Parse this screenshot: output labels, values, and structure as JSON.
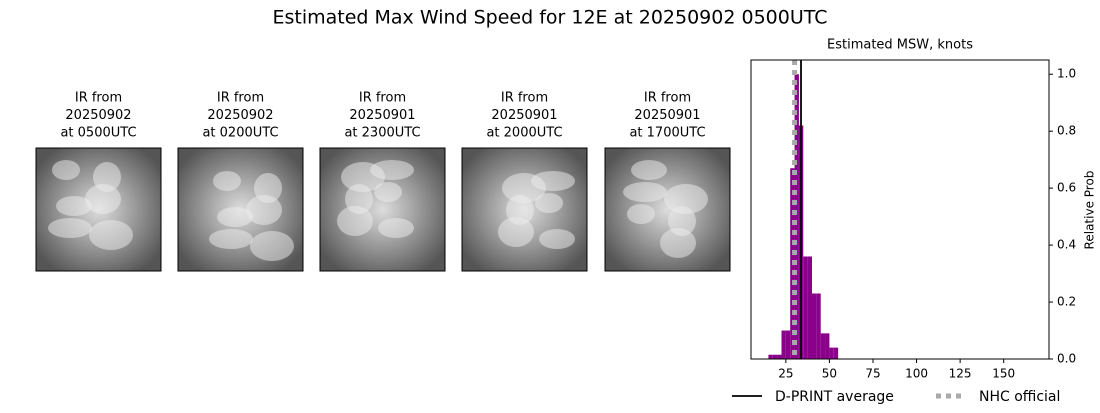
{
  "title": "Estimated Max Wind Speed for 12E at 20250902 0500UTC",
  "panels": [
    {
      "lines": [
        "IR from",
        "20250902",
        "at 0500UTC"
      ]
    },
    {
      "lines": [
        "IR from",
        "20250902",
        "at 0200UTC"
      ]
    },
    {
      "lines": [
        "IR from",
        "20250901",
        "at 2300UTC"
      ]
    },
    {
      "lines": [
        "IR from",
        "20250901",
        "at 2000UTC"
      ]
    },
    {
      "lines": [
        "IR from",
        "20250901",
        "at 1700UTC"
      ]
    }
  ],
  "chart_data": {
    "type": "histogram",
    "title": "Estimated MSW, knots",
    "y_label": "Relative Prob",
    "bins": [
      15,
      17.5,
      20,
      22.5,
      25,
      27.5,
      30,
      32.5,
      35,
      37.5,
      40,
      42.5,
      45,
      47.5,
      50,
      52.5,
      55
    ],
    "values": [
      0.015,
      0.015,
      0.015,
      0.1,
      0.1,
      0.67,
      1.0,
      0.82,
      0.36,
      0.36,
      0.23,
      0.23,
      0.09,
      0.09,
      0.04,
      0.04
    ],
    "color": "#8b008b",
    "xlim": [
      5,
      176
    ],
    "xticks": [
      25,
      50,
      75,
      100,
      125,
      150
    ],
    "ylim": [
      0,
      1.05
    ],
    "yticks": [
      {
        "value": 0,
        "label": "0.0"
      },
      {
        "value": 0.2,
        "label": "0.2"
      },
      {
        "value": 0.4,
        "label": "0.4"
      },
      {
        "value": 0.6,
        "label": "0.6"
      },
      {
        "value": 0.8,
        "label": "0.8"
      },
      {
        "value": 1,
        "label": "1.0"
      }
    ],
    "vlines": [
      {
        "name": "D-PRINT average",
        "value": 33.7,
        "color": "#000000",
        "style": "solid"
      },
      {
        "name": "NHC official",
        "value": 30,
        "color": "#aaaaaa",
        "style": "dotted"
      }
    ]
  }
}
